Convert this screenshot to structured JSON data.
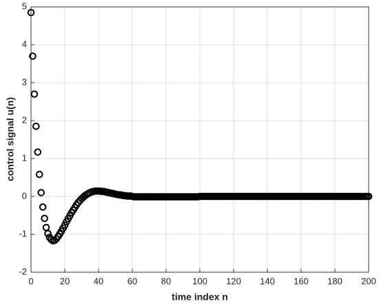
{
  "chart_data": {
    "type": "scatter",
    "xlabel": "time index n",
    "ylabel": "control signal u(n)",
    "x": [
      0,
      1,
      2,
      3,
      4,
      5,
      6,
      7,
      8,
      9,
      10,
      11,
      12,
      13,
      14,
      15,
      16,
      17,
      18,
      19,
      20,
      21,
      22,
      23,
      24,
      25,
      26,
      27,
      28,
      29,
      30,
      31,
      32,
      33,
      34,
      35,
      36,
      37,
      38,
      39,
      40,
      41,
      42,
      43,
      44,
      45,
      46,
      47,
      48,
      49,
      50,
      51,
      52,
      53,
      54,
      55,
      56,
      57,
      58,
      59,
      60,
      61,
      62,
      63,
      64,
      65,
      66,
      67,
      68,
      69,
      70,
      71,
      72,
      73,
      74,
      75,
      76,
      77,
      78,
      79,
      80,
      81,
      82,
      83,
      84,
      85,
      86,
      87,
      88,
      89,
      90,
      91,
      92,
      93,
      94,
      95,
      96,
      97,
      98,
      99,
      100,
      101,
      102,
      103,
      104,
      105,
      106,
      107,
      108,
      109,
      110,
      111,
      112,
      113,
      114,
      115,
      116,
      117,
      118,
      119,
      120,
      121,
      122,
      123,
      124,
      125,
      126,
      127,
      128,
      129,
      130,
      131,
      132,
      133,
      134,
      135,
      136,
      137,
      138,
      139,
      140,
      141,
      142,
      143,
      144,
      145,
      146,
      147,
      148,
      149,
      150,
      151,
      152,
      153,
      154,
      155,
      156,
      157,
      158,
      159,
      160,
      161,
      162,
      163,
      164,
      165,
      166,
      167,
      168,
      169,
      170,
      171,
      172,
      173,
      174,
      175,
      176,
      177,
      178,
      179,
      180,
      181,
      182,
      183,
      184,
      185,
      186,
      187,
      188,
      189,
      190,
      191,
      192,
      193,
      194,
      195,
      196,
      197,
      198,
      199,
      200
    ],
    "series": [
      {
        "color": "#000000",
        "values": [
          4.85,
          3.7,
          2.7,
          1.85,
          1.17,
          0.58,
          0.1,
          -0.28,
          -0.58,
          -0.82,
          -0.98,
          -1.08,
          -1.14,
          -1.17,
          -1.16,
          -1.12,
          -1.06,
          -0.99,
          -0.92,
          -0.84,
          -0.76,
          -0.67,
          -0.59,
          -0.51,
          -0.43,
          -0.36,
          -0.29,
          -0.22,
          -0.16,
          -0.11,
          -0.06,
          -0.02,
          0.02,
          0.05,
          0.08,
          0.1,
          0.12,
          0.13,
          0.14,
          0.14,
          0.14,
          0.14,
          0.13,
          0.13,
          0.12,
          0.11,
          0.1,
          0.09,
          0.08,
          0.07,
          0.06,
          0.05,
          0.04,
          0.04,
          0.03,
          0.02,
          0.02,
          0.01,
          0.01,
          0.01,
          0,
          -0.01,
          -0.01,
          -0.01,
          -0.01,
          -0.01,
          -0.01,
          -0.01,
          -0.01,
          -0.01,
          -0.01,
          -0.01,
          -0.01,
          -0.01,
          -0.01,
          -0.01,
          -0.01,
          -0.01,
          -0.01,
          -0.01,
          -0.01,
          -0.01,
          -0.01,
          -0.01,
          -0.01,
          -0.01,
          -0.01,
          -0.01,
          -0.01,
          -0.01,
          -0.01,
          -0.01,
          -0.01,
          -0.01,
          -0.01,
          -0.01,
          -0.01,
          -0.01,
          -0.01,
          -0.01,
          0,
          0,
          0,
          0,
          0,
          0,
          0,
          0,
          0,
          0,
          0,
          0,
          0,
          0,
          0,
          0,
          0,
          0,
          0,
          0,
          0,
          0,
          0,
          0,
          0,
          0,
          0,
          0,
          0,
          0,
          0,
          0,
          0,
          0,
          0,
          0,
          0,
          0,
          0,
          0,
          0,
          0,
          0,
          0,
          0,
          0,
          0,
          0,
          0,
          0,
          0,
          0,
          0,
          0,
          0,
          0,
          0,
          0,
          0,
          0,
          0,
          0,
          0,
          0,
          0,
          0,
          0,
          0,
          0,
          0,
          0,
          0,
          0,
          0,
          0,
          0,
          0,
          0,
          0,
          0,
          0,
          0,
          0,
          0,
          0,
          0,
          0,
          0,
          0,
          0,
          0,
          0,
          0,
          0,
          0,
          0,
          0,
          0,
          0,
          0,
          0
        ]
      }
    ],
    "xlim": [
      0,
      200
    ],
    "xticks": [
      0,
      20,
      40,
      60,
      80,
      100,
      120,
      140,
      160,
      180,
      200
    ],
    "ylim": [
      -2,
      5
    ],
    "yticks": [
      -2,
      -1,
      0,
      1,
      2,
      3,
      4,
      5
    ],
    "grid": true
  }
}
